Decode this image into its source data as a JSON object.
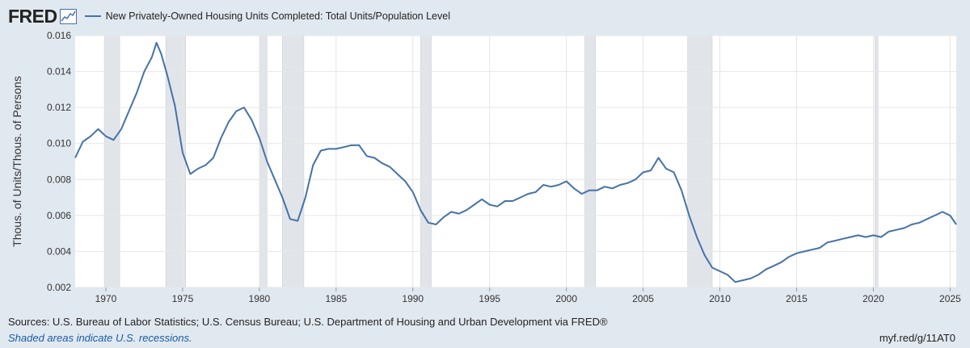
{
  "header": {
    "logo_text": "FRED",
    "logo_icon": "line-chart-icon",
    "legend_label": "New Privately-Owned Housing Units Completed: Total Units/Population Level"
  },
  "footer": {
    "sources": "Sources: U.S. Bureau of Labor Statistics; U.S. Census Bureau; U.S. Department of Housing and Urban Development via FRED®",
    "note": "Shaded areas indicate U.S. recessions.",
    "url": "myf.red/g/11AT0"
  },
  "colors": {
    "background": "#e1e9f0",
    "plot": "#ffffff",
    "series": "#4572a7",
    "recession": "#e1e5ea",
    "note": "#1a5aa6"
  },
  "chart_data": {
    "type": "line",
    "ylabel": "Thous. of Units/Thous. of Persons",
    "ylim": [
      0.002,
      0.016
    ],
    "yticks": [
      "0.002",
      "0.004",
      "0.006",
      "0.008",
      "0.010",
      "0.012",
      "0.014",
      "0.016"
    ],
    "xlim": [
      1968.0,
      2025.4
    ],
    "xticks": [
      "1970",
      "1975",
      "1980",
      "1985",
      "1990",
      "1995",
      "2000",
      "2005",
      "2010",
      "2015",
      "2020",
      "2025"
    ],
    "grid": true,
    "recessions": [
      [
        1969.9,
        1970.9
      ],
      [
        1973.9,
        1975.2
      ],
      [
        1980.0,
        1980.5
      ],
      [
        1981.5,
        1982.9
      ],
      [
        1990.5,
        1991.2
      ],
      [
        2001.2,
        2001.9
      ],
      [
        2007.9,
        2009.5
      ],
      [
        2020.1,
        2020.3
      ]
    ],
    "series": [
      {
        "name": "New Privately-Owned Housing Units Completed: Total Units/Population Level",
        "x": [
          1968.0,
          1968.5,
          1969.0,
          1969.5,
          1970.0,
          1970.5,
          1971.0,
          1971.5,
          1972.0,
          1972.5,
          1973.0,
          1973.3,
          1973.6,
          1974.0,
          1974.5,
          1975.0,
          1975.5,
          1976.0,
          1976.5,
          1977.0,
          1977.5,
          1978.0,
          1978.5,
          1979.0,
          1979.5,
          1980.0,
          1980.5,
          1981.0,
          1981.5,
          1982.0,
          1982.5,
          1983.0,
          1983.5,
          1984.0,
          1984.5,
          1985.0,
          1985.5,
          1986.0,
          1986.5,
          1987.0,
          1987.5,
          1988.0,
          1988.5,
          1989.0,
          1989.5,
          1990.0,
          1990.5,
          1991.0,
          1991.5,
          1992.0,
          1992.5,
          1993.0,
          1993.5,
          1994.0,
          1994.5,
          1995.0,
          1995.5,
          1996.0,
          1996.5,
          1997.0,
          1997.5,
          1998.0,
          1998.5,
          1999.0,
          1999.5,
          2000.0,
          2000.5,
          2001.0,
          2001.5,
          2002.0,
          2002.5,
          2003.0,
          2003.5,
          2004.0,
          2004.5,
          2005.0,
          2005.5,
          2006.0,
          2006.5,
          2007.0,
          2007.5,
          2008.0,
          2008.5,
          2009.0,
          2009.5,
          2010.0,
          2010.5,
          2011.0,
          2011.5,
          2012.0,
          2012.5,
          2013.0,
          2013.5,
          2014.0,
          2014.5,
          2015.0,
          2015.5,
          2016.0,
          2016.5,
          2017.0,
          2017.5,
          2018.0,
          2018.5,
          2019.0,
          2019.5,
          2020.0,
          2020.5,
          2021.0,
          2021.5,
          2022.0,
          2022.5,
          2023.0,
          2023.5,
          2024.0,
          2024.5,
          2025.0,
          2025.4
        ],
        "values": [
          0.0092,
          0.0101,
          0.0104,
          0.0108,
          0.0104,
          0.0102,
          0.0108,
          0.0118,
          0.0128,
          0.014,
          0.0148,
          0.0156,
          0.015,
          0.0138,
          0.0121,
          0.0095,
          0.0083,
          0.0086,
          0.0088,
          0.0092,
          0.0103,
          0.0112,
          0.0118,
          0.012,
          0.0113,
          0.0103,
          0.009,
          0.008,
          0.007,
          0.0058,
          0.0057,
          0.007,
          0.0088,
          0.0096,
          0.0097,
          0.0097,
          0.0098,
          0.0099,
          0.0099,
          0.0093,
          0.0092,
          0.0089,
          0.0087,
          0.0083,
          0.0079,
          0.0073,
          0.0063,
          0.0056,
          0.0055,
          0.0059,
          0.0062,
          0.0061,
          0.0063,
          0.0066,
          0.0069,
          0.0066,
          0.0065,
          0.0068,
          0.0068,
          0.007,
          0.0072,
          0.0073,
          0.0077,
          0.0076,
          0.0077,
          0.0079,
          0.0075,
          0.0072,
          0.0074,
          0.0074,
          0.0076,
          0.0075,
          0.0077,
          0.0078,
          0.008,
          0.0084,
          0.0085,
          0.0092,
          0.0086,
          0.0084,
          0.0074,
          0.006,
          0.0048,
          0.0038,
          0.0031,
          0.0029,
          0.0027,
          0.0023,
          0.0024,
          0.0025,
          0.0027,
          0.003,
          0.0032,
          0.0034,
          0.0037,
          0.0039,
          0.004,
          0.0041,
          0.0042,
          0.0045,
          0.0046,
          0.0047,
          0.0048,
          0.0049,
          0.0048,
          0.0049,
          0.0048,
          0.0051,
          0.0052,
          0.0053,
          0.0055,
          0.0056,
          0.0058,
          0.006,
          0.0062,
          0.006,
          0.0055
        ]
      }
    ]
  }
}
